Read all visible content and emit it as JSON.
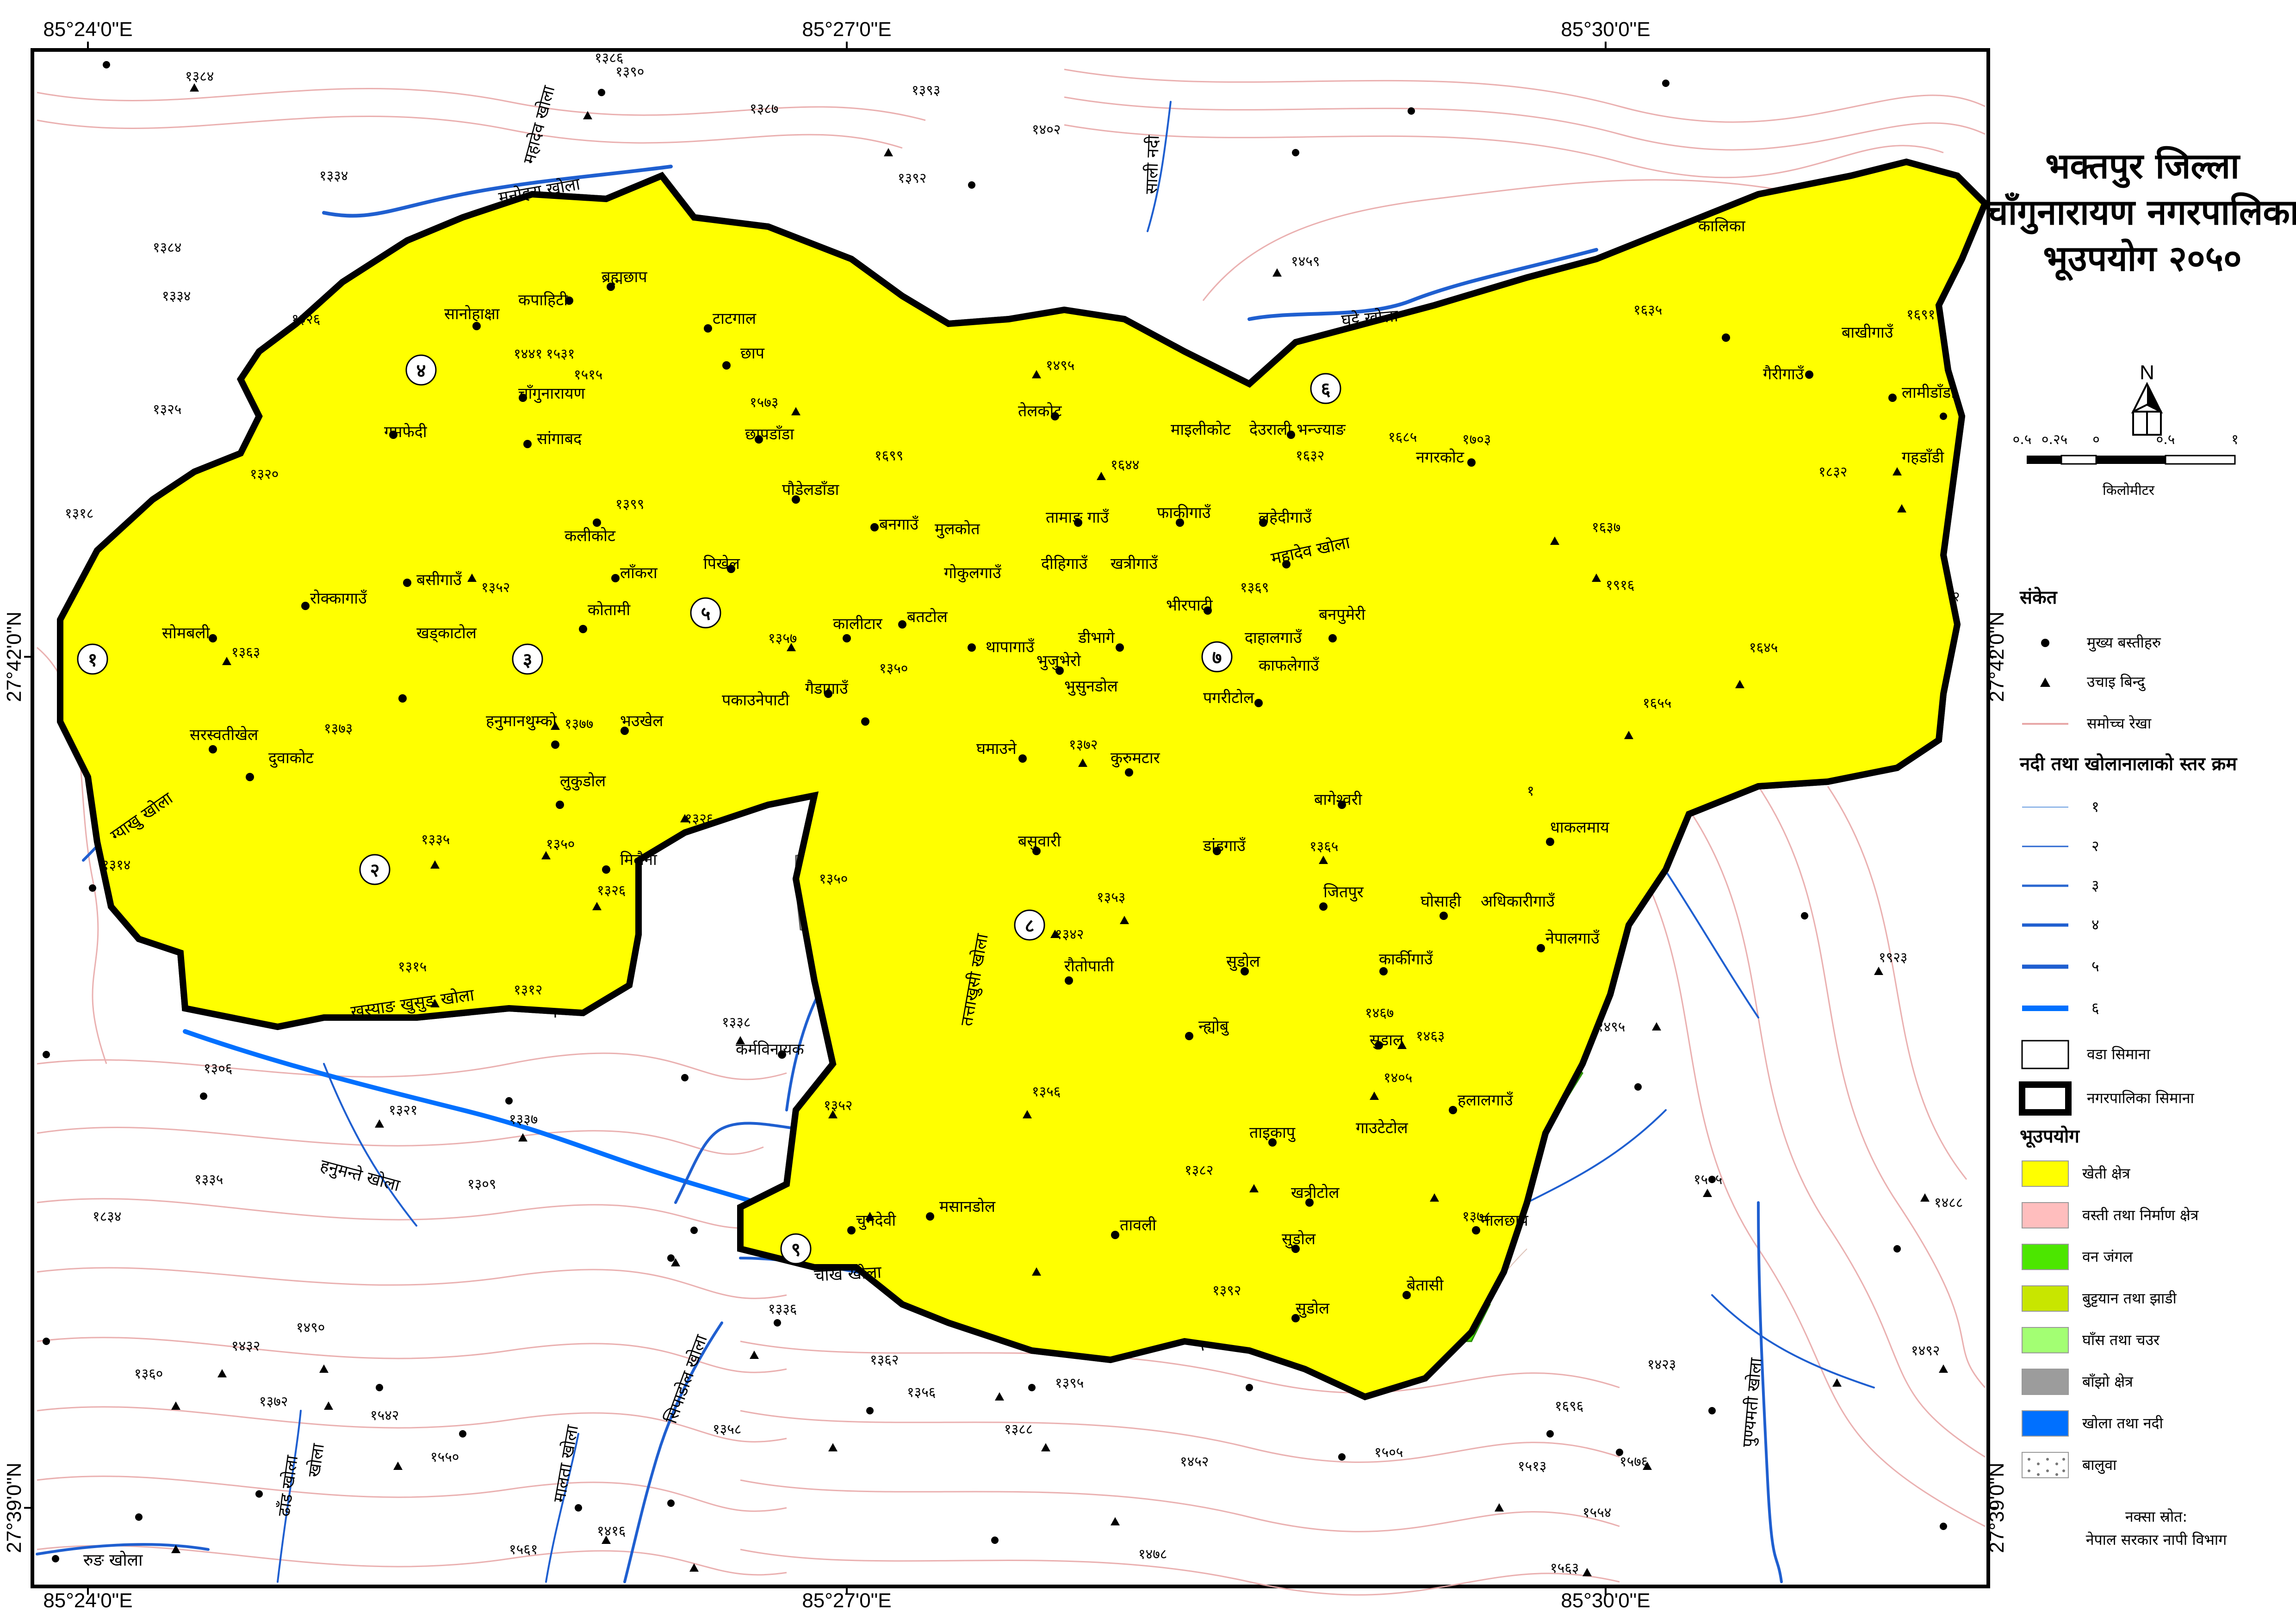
{
  "coords": {
    "top": [
      "85°24'0\"E",
      "85°27'0\"E",
      "85°30'0\"E"
    ],
    "bottom": [
      "85°24'0\"E",
      "85°27'0\"E",
      "85°30'0\"E"
    ],
    "left": [
      "27°42'0\"N",
      "27°39'0\"N"
    ],
    "right": [
      "27°42'0\"N",
      "27°39'0\"N"
    ]
  },
  "title": {
    "line1": "भक्तपुर जिल्ला",
    "line2": "चाँगुनारायण नगरपालिका",
    "line3": "भूउपयोग २०५०"
  },
  "north": "N",
  "scale": {
    "ticks": [
      "०.५",
      "०.२५",
      "०",
      "०.५",
      "१"
    ],
    "unit": "किलोमीटर"
  },
  "legend": {
    "symbols_title": "संकेत",
    "symbols": [
      {
        "label": "मुख्य बस्तीहरु"
      },
      {
        "label": "उचाइ बिन्दु"
      },
      {
        "label": "समोच्च रेखा"
      }
    ],
    "stream_title": "नदी तथा खोलानालाको स्तर क्रम",
    "streams": [
      "१",
      "२",
      "३",
      "४",
      "५",
      "६"
    ],
    "boundaries": [
      {
        "label": "वडा सिमाना"
      },
      {
        "label": "नगरपालिका सिमाना"
      }
    ],
    "landuse_title": "भूउपयोग",
    "landuse": [
      {
        "label": "खेती क्षेत्र",
        "color": "#ffff00"
      },
      {
        "label": "वस्ती तथा निर्माण क्षेत्र",
        "color": "#ffbebe"
      },
      {
        "label": "वन जंगल",
        "color": "#4ce600"
      },
      {
        "label": "बुट्टयान तथा झाडी",
        "color": "#c8e600"
      },
      {
        "label": "घाँस तथा चउर",
        "color": "#a3ff73"
      },
      {
        "label": "बाँझो क्षेत्र",
        "color": "#9c9c9c"
      },
      {
        "label": "खोला तथा नदी",
        "color": "#0070ff"
      },
      {
        "label": "बालुवा",
        "color": "#ffffff"
      }
    ],
    "source_label": "नक्सा स्रोत:",
    "source": "नेपाल सरकार नापी विभाग"
  },
  "wards": [
    "१",
    "२",
    "३",
    "४",
    "५",
    "६",
    "७",
    "८",
    "९"
  ],
  "rivers": [
    "मनोहरा खोला",
    "महादेव खोला",
    "साली नदी",
    "घट्टे खोला",
    "महादेव खोला",
    "ग्याखु खोला",
    "खस्याङ खुसुङ खोला",
    "हनुमन्ते खोला",
    "तत्ताखुसी खोला",
    "चाख खोला",
    "सिपाडोल खोला",
    "पुण्यमती खोला",
    "मालता खोला",
    "ढाँड खोला",
    "रुङ खोला",
    "खोला"
  ],
  "places": [
    "सानोहाक्षा",
    "कपाहिटी",
    "ब्रह्मछाप",
    "टाटगाल",
    "छाप",
    "चाँगुनारायण",
    "गमफेदी",
    "सांगाबद",
    "छापडाँडा",
    "तेलकोट",
    "माइलीकोट",
    "देउराली भन्ज्याङ",
    "नगरकोट",
    "कालिका",
    "बाखीगाउँ",
    "गैरीगाउँ",
    "लामीडाँडा",
    "गहडाँडी",
    "कलीकोट",
    "लाँकरा",
    "पिखेल",
    "पौडेलडाँडा",
    "बनगाउँ",
    "मुलकोत",
    "तामाङ गाउँ",
    "फाकीगाउँ",
    "लहेदीगाउँ",
    "रोक्कागाउँ",
    "बसीगाउँ",
    "कोतामी",
    "गोकुलगाउँ",
    "दीहिगाउँ",
    "खत्रीगाउँ",
    "सोमबली",
    "खड्काटोल",
    "कालीटार",
    "बतटोल",
    "थापागाउँ",
    "डीभागे",
    "भीरपाटी",
    "बनपुमेरी",
    "दाहालगाउँ",
    "भुजुभेरो",
    "भुसुनडोल",
    "काफलेगाउँ",
    "पकाउनेपाटी",
    "गैडागाउँ",
    "पगरीटोल",
    "सरस्वतीखेल",
    "दुवाकोट",
    "हनुमानथुम्को",
    "भउखेल",
    "लुकुडोल",
    "घमाउने",
    "कुरुमटार",
    "बागेश्वरी",
    "बसुवारी",
    "डांडगाउँ",
    "धाकलमाय",
    "मिलैना",
    "जितपुर",
    "घोसाही",
    "अधिकारीगाउँ",
    "नेपालगाउँ",
    "रौतोपाती",
    "सुडोल",
    "कार्कीगाउँ",
    "न्ह्योबु",
    "सुडाल",
    "कर्मविनायक",
    "हलालगाउँ",
    "ताइकापु",
    "गाउटेटोल",
    "खत्रीटोल",
    "नालछाप",
    "चुनदेवी",
    "मसानडोल",
    "तावली",
    "सुडोल",
    "बेतासी",
    "सुडोल"
  ],
  "elevations": [
    "१३८६",
    "१३९०",
    "१३८४",
    "१३८७",
    "१३९३",
    "१४०२",
    "१३९२",
    "१३८४",
    "१३५३",
    "१३३४",
    "१३२६",
    "१३८४",
    "१३३४",
    "१३२५",
    "१३२०",
    "१३१८",
    "१४४१",
    "१५३१",
    "१५१५",
    "१५७३",
    "१३९९",
    "१४९५",
    "१६९९",
    "१६४४",
    "१४५९",
    "१६३२",
    "१६८५",
    "१७०३",
    "१६३५",
    "१६९१",
    "१८३२",
    "१६३७",
    "१९१६",
    "१६४५",
    "१६५५",
    "१३६९",
    "१३५७",
    "१३५०",
    "१३६३",
    "१३५२",
    "१३७३",
    "१३७७",
    "१३१४",
    "१३३५",
    "१३५०",
    "१३२६",
    "१३१५",
    "१३१२",
    "१३२६",
    "१३५०",
    "१३४२",
    "१३५३",
    "१३६५",
    "१३७२",
    "१४६३",
    "१४६७",
    "१४०५",
    "१३७८",
    "१३८२",
    "१३६६",
    "१३९२",
    "१३३८",
    "१३०६",
    "१३२१",
    "१३३७",
    "१३३५",
    "१३०९",
    "१३५६",
    "१३५२",
    "१३३६",
    "१३६२",
    "१४९०",
    "१४३२",
    "१३६०",
    "१३७२",
    "१५४२",
    "१५५०",
    "१३५८",
    "१३५६",
    "१३९५",
    "१३८८",
    "१४५२",
    "१५०५",
    "१६९६",
    "१५१३",
    "१५७६",
    "१५५४",
    "१५६३",
    "१५०५",
    "१४२३",
    "१४९२",
    "१४८८",
    "१४१६",
    "१५६१",
    "१४७८",
    "१९२३",
    "१४९५",
    "१८३४"
  ],
  "boundary_labels": [
    "१",
    "२"
  ]
}
